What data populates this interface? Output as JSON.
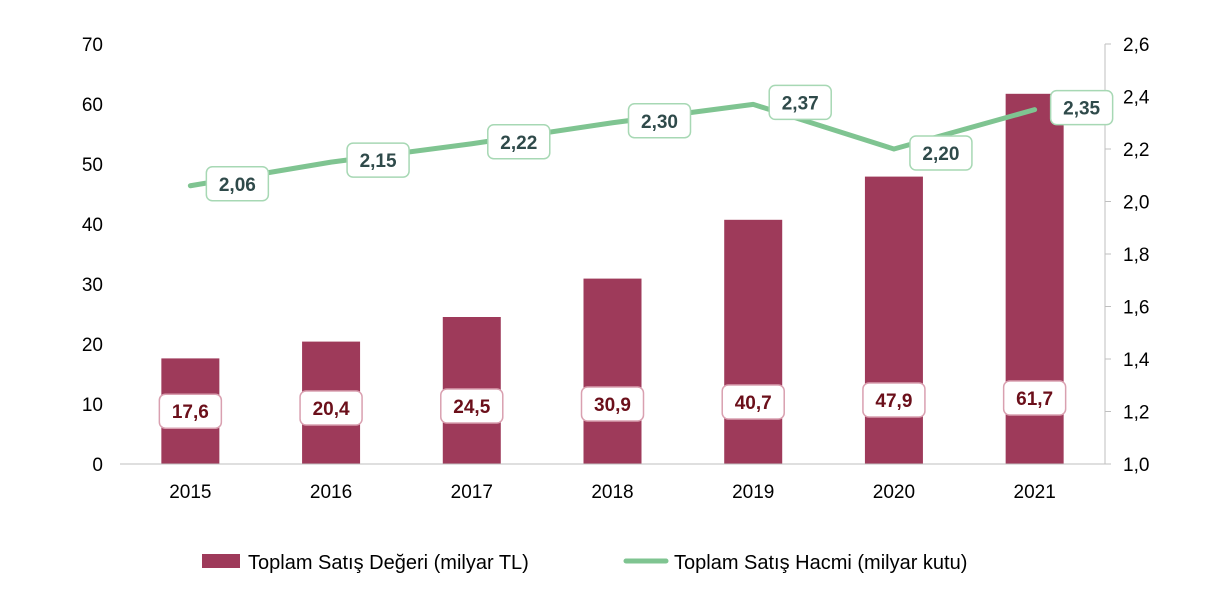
{
  "chart_data": {
    "type": "bar",
    "categories": [
      "2015",
      "2016",
      "2017",
      "2018",
      "2019",
      "2020",
      "2021"
    ],
    "series": [
      {
        "name": "Toplam Satış Değeri (milyar TL)",
        "type": "bar",
        "axis": "left",
        "values": [
          17.6,
          20.4,
          24.5,
          30.9,
          40.7,
          47.9,
          61.7
        ],
        "labels": [
          "17,6",
          "20,4",
          "24,5",
          "30,9",
          "40,7",
          "47,9",
          "61,7"
        ],
        "color": "#9e3a5a"
      },
      {
        "name": "Toplam Satış Hacmi (milyar kutu)",
        "type": "line",
        "axis": "right",
        "values": [
          2.06,
          2.15,
          2.22,
          2.3,
          2.37,
          2.2,
          2.35
        ],
        "labels": [
          "2,06",
          "2,15",
          "2,22",
          "2,30",
          "2,37",
          "2,20",
          "2,35"
        ],
        "color": "#7fc491"
      }
    ],
    "y_left": {
      "lim": [
        0,
        70
      ],
      "ticks": [
        0,
        10,
        20,
        30,
        40,
        50,
        60,
        70
      ],
      "tick_labels": [
        "0",
        "10",
        "20",
        "30",
        "40",
        "50",
        "60",
        "70"
      ]
    },
    "y_right": {
      "lim": [
        1.0,
        2.6
      ],
      "ticks": [
        1.0,
        1.2,
        1.4,
        1.6,
        1.8,
        2.0,
        2.2,
        2.4,
        2.6
      ],
      "tick_labels": [
        "1,0",
        "1,2",
        "1,4",
        "1,6",
        "1,8",
        "2,0",
        "2,2",
        "2,4",
        "2,6"
      ]
    },
    "grid": false,
    "legend_position": "bottom",
    "colors": {
      "bar_label_border": "#d9a0b0",
      "line_label_border": "#a7d8b4",
      "axis": "#bfbfbf"
    }
  }
}
